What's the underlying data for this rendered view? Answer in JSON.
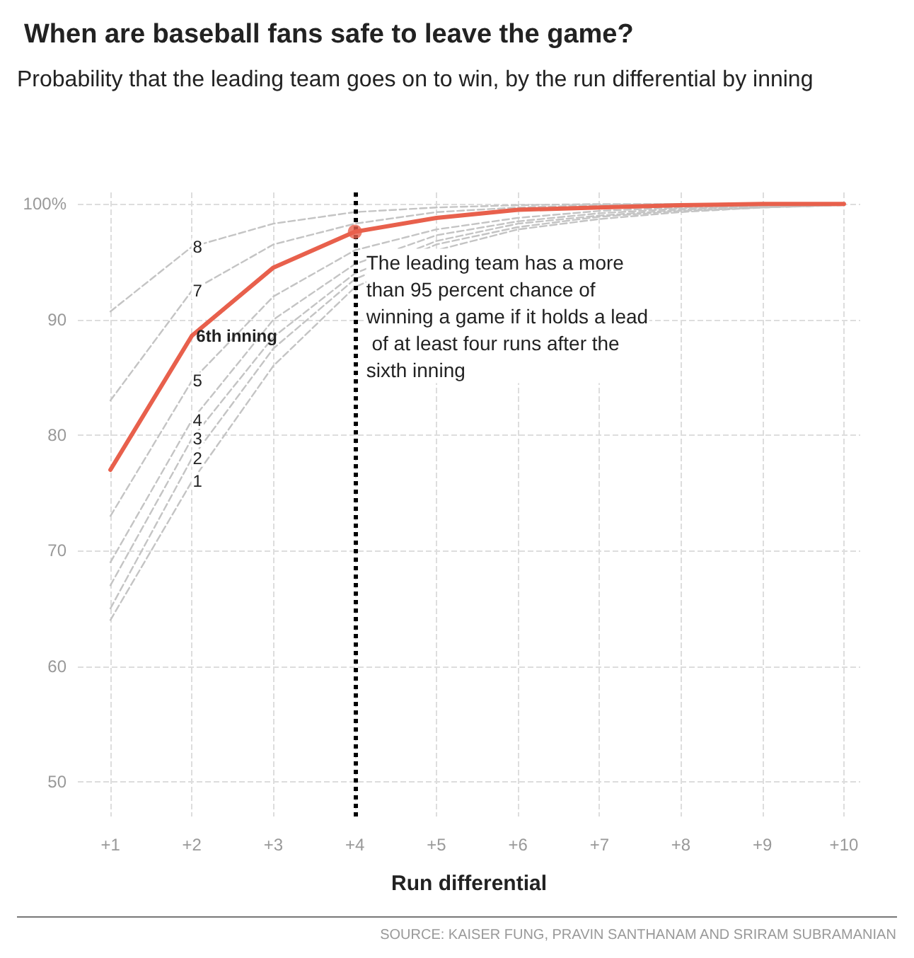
{
  "chart_data": {
    "type": "line",
    "title": "When are baseball fans safe to leave the game?",
    "subtitle": "Probability that the leading team goes on to win, by the run differential by inning",
    "xlabel": "Run differential",
    "x": [
      1,
      2,
      3,
      4,
      5,
      6,
      7,
      8,
      9,
      10
    ],
    "series": [
      {
        "name": "1",
        "color": "#c4c4c4",
        "line_style": "dashed",
        "values": [
          64,
          76,
          86,
          92.8,
          96,
          97.8,
          98.7,
          99.3,
          99.7,
          99.9
        ]
      },
      {
        "name": "2",
        "color": "#c4c4c4",
        "line_style": "dashed",
        "values": [
          65,
          78,
          87.5,
          93.5,
          96.5,
          98,
          98.9,
          99.4,
          99.7,
          99.9
        ]
      },
      {
        "name": "3",
        "color": "#c4c4c4",
        "line_style": "dashed",
        "values": [
          67,
          79.7,
          88.5,
          94,
          96.8,
          98.3,
          99,
          99.5,
          99.8,
          100
        ]
      },
      {
        "name": "4",
        "color": "#c4c4c4",
        "line_style": "dashed",
        "values": [
          69,
          81.3,
          90,
          94.8,
          97.3,
          98.5,
          99.2,
          99.6,
          99.8,
          100
        ]
      },
      {
        "name": "5",
        "color": "#c4c4c4",
        "line_style": "dashed",
        "values": [
          73,
          84.7,
          92,
          96,
          97.8,
          98.8,
          99.4,
          99.7,
          99.9,
          100
        ]
      },
      {
        "name": "7",
        "color": "#c4c4c4",
        "line_style": "dashed",
        "values": [
          83,
          92.5,
          96.5,
          98.3,
          99.3,
          99.7,
          99.9,
          100,
          100,
          100
        ]
      },
      {
        "name": "8",
        "color": "#c4c4c4",
        "line_style": "dashed",
        "values": [
          90.7,
          96.3,
          98.3,
          99.3,
          99.7,
          99.9,
          100,
          100,
          100,
          100
        ]
      },
      {
        "name": "6th inning",
        "color": "#e8604c",
        "line_style": "solid",
        "values": [
          77,
          88.6,
          94.5,
          97.6,
          98.8,
          99.5,
          99.7,
          99.9,
          100,
          100
        ]
      }
    ],
    "xlim": [
      0.6,
      10.2
    ],
    "xticks": [
      {
        "value": 1,
        "label": "+1"
      },
      {
        "value": 2,
        "label": "+2"
      },
      {
        "value": 3,
        "label": "+3"
      },
      {
        "value": 4,
        "label": "+4"
      },
      {
        "value": 5,
        "label": "+5"
      },
      {
        "value": 6,
        "label": "+6"
      },
      {
        "value": 7,
        "label": "+7"
      },
      {
        "value": 8,
        "label": "+8"
      },
      {
        "value": 9,
        "label": "+9"
      },
      {
        "value": 10,
        "label": "+10"
      }
    ],
    "ylim": [
      47,
      101
    ],
    "yticks": [
      50,
      60,
      70,
      80,
      90,
      {
        "value": 100,
        "label": "100%"
      }
    ],
    "grid": true,
    "marker": "none",
    "ref_lines": [
      {
        "axis": "x",
        "value": 4,
        "color": "#000000",
        "line_style": "dotted"
      }
    ],
    "annotations": [
      {
        "text": "The leading team has a more than 95 percent chance of winning a game if it holds a lead of at least four runs after the sixth inning",
        "x": 4,
        "y": 97.6
      },
      "SOURCE: KAISER FUNG, PRAVIN SANTHANAM AND SRIRAM SUBRAMANIAN"
    ]
  }
}
